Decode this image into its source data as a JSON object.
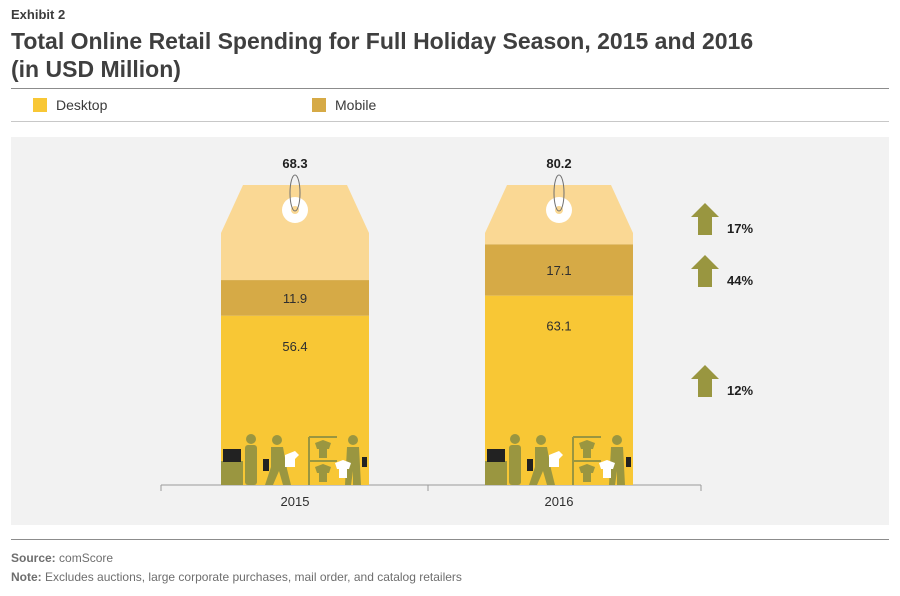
{
  "header": {
    "exhibit": "Exhibit 2",
    "title_line1": "Total Online Retail Spending for Full Holiday Season, 2015 and 2016",
    "title_line2": "(in USD Million)"
  },
  "legend": [
    {
      "label": "Desktop",
      "color": "#f8c735"
    },
    {
      "label": "Mobile",
      "color": "#d6aa46"
    }
  ],
  "colors": {
    "desktop": "#f8c735",
    "mobile": "#d6aa46",
    "total_tag": "#fad894",
    "arrow": "#999640",
    "icon": "#9a9640",
    "panel": "#f2f2f2"
  },
  "chart_data": {
    "type": "bar",
    "stacked": true,
    "categories": [
      "2015",
      "2016"
    ],
    "series": [
      {
        "name": "Desktop",
        "values": [
          56.4,
          63.1
        ]
      },
      {
        "name": "Mobile",
        "values": [
          11.9,
          17.1
        ]
      }
    ],
    "totals": [
      68.3,
      80.2
    ],
    "growth": [
      {
        "segment": "Total",
        "label": "17%"
      },
      {
        "segment": "Mobile",
        "label": "44%"
      },
      {
        "segment": "Desktop",
        "label": "12%"
      }
    ],
    "title": "Total Online Retail Spending for Full Holiday Season, 2015 and 2016 (in USD Million)",
    "legend_position": "top"
  },
  "footer": {
    "source_label": "Source:",
    "source_text": "comScore",
    "note_label": "Note:",
    "note_text": "Excludes auctions, large corporate purchases, mail order, and catalog retailers"
  }
}
